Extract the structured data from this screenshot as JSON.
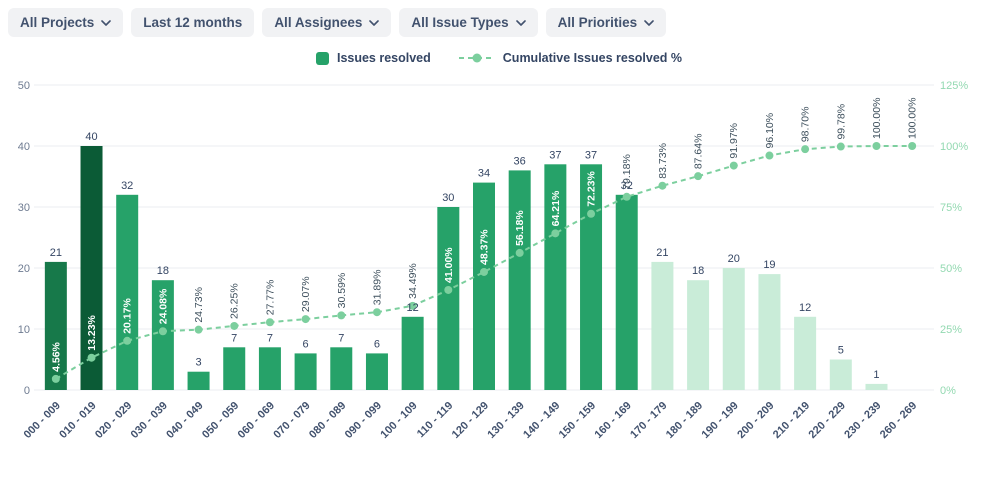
{
  "filters": [
    {
      "label": "All Projects",
      "chevron": true
    },
    {
      "label": "Last 12 months",
      "chevron": false
    },
    {
      "label": "All Assignees",
      "chevron": true
    },
    {
      "label": "All Issue Types",
      "chevron": true
    },
    {
      "label": "All Priorities",
      "chevron": true
    }
  ],
  "legend": [
    {
      "label": "Issues resolved"
    },
    {
      "label": "Cumulative Issues resolved %"
    }
  ],
  "chart_data": {
    "type": "bar+line (pareto)",
    "categories": [
      "000 - 009",
      "010 - 019",
      "020 - 029",
      "030 - 039",
      "040 - 049",
      "050 - 059",
      "060 - 069",
      "070 - 079",
      "080 - 089",
      "090 - 099",
      "100 - 109",
      "110 - 119",
      "120 - 129",
      "130 - 139",
      "140 - 149",
      "150 - 159",
      "160 - 169",
      "170 - 179",
      "180 - 189",
      "190 - 199",
      "200 - 209",
      "210 - 219",
      "220 - 229",
      "230 - 239",
      "260 - 269"
    ],
    "series": [
      {
        "name": "Issues resolved",
        "type": "bar",
        "axis": "left",
        "values": [
          21,
          40,
          32,
          18,
          3,
          7,
          7,
          6,
          7,
          6,
          12,
          30,
          34,
          36,
          37,
          37,
          32,
          21,
          18,
          20,
          19,
          12,
          5,
          1,
          0
        ],
        "bar_colors": [
          "#17794a",
          "#0b5b36",
          "#26a269",
          "#26a269",
          "#26a269",
          "#26a269",
          "#26a269",
          "#26a269",
          "#26a269",
          "#26a269",
          "#26a269",
          "#26a269",
          "#26a269",
          "#26a269",
          "#26a269",
          "#26a269",
          "#26a269",
          "#c9ecd8",
          "#c9ecd8",
          "#c9ecd8",
          "#c9ecd8",
          "#c9ecd8",
          "#c9ecd8",
          "#c9ecd8",
          "#c9ecd8"
        ]
      },
      {
        "name": "Cumulative Issues resolved %",
        "type": "line",
        "axis": "right",
        "values": [
          4.56,
          13.23,
          20.17,
          24.08,
          24.73,
          26.25,
          27.77,
          29.07,
          30.59,
          31.89,
          34.49,
          41.0,
          48.37,
          56.18,
          64.21,
          72.23,
          79.18,
          83.73,
          87.64,
          91.97,
          96.1,
          98.7,
          99.78,
          100.0,
          100.0
        ],
        "labels": [
          "4.56%",
          "13.23%",
          "20.17%",
          "24.08%",
          "24.73%",
          "26.25%",
          "27.77%",
          "29.07%",
          "30.59%",
          "31.89%",
          "34.49%",
          "41.00%",
          "48.37%",
          "56.18%",
          "64.21%",
          "72.23%",
          "79.18%",
          "83.73%",
          "87.64%",
          "91.97%",
          "96.10%",
          "98.70%",
          "99.78%",
          "100.00%",
          "100.00%"
        ]
      }
    ],
    "left_axis": {
      "ticks": [
        "0",
        "10",
        "20",
        "30",
        "40",
        "50"
      ],
      "min": 0,
      "max": 50
    },
    "right_axis": {
      "ticks": [
        "0%",
        "25%",
        "50%",
        "75%",
        "100%",
        "125%"
      ],
      "min": 0,
      "max": 125
    },
    "grid": "horizontal",
    "legend_position": "top-center"
  },
  "colors": {
    "bar_medium": "#26a269",
    "bar_pale": "#c9ecd8",
    "line": "#7ccf9e",
    "grid": "#ebedf0",
    "left_axis_text": "#6e7b91",
    "right_axis_text": "#93d9b1",
    "category_text": "#42526e",
    "bar_value_text": "#344563",
    "cumulative_label_dark": "#3d4f5c",
    "cumulative_label_light": "#ffffff"
  }
}
